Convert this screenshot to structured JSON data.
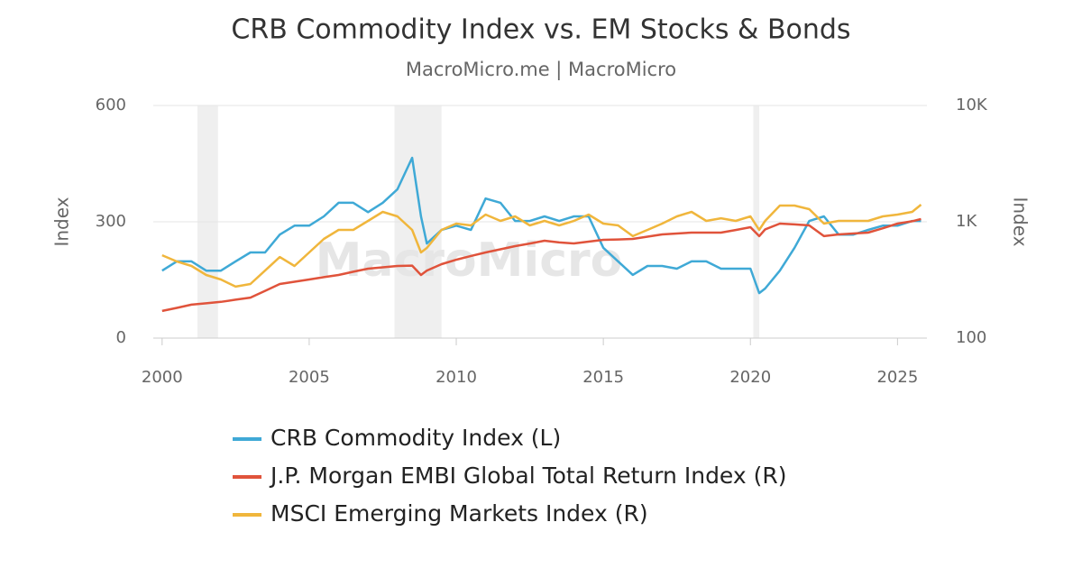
{
  "chart_data": {
    "type": "line",
    "title": "CRB Commodity Index vs. EM Stocks & Bonds",
    "subtitle": "MacroMicro.me | MacroMicro",
    "watermark": "MacroMicro",
    "y_label": "Index",
    "y2_label": "Index",
    "xlim": [
      1999.7,
      2026
    ],
    "xticks": [
      2000,
      2005,
      2010,
      2015,
      2020,
      2025
    ],
    "ylim": [
      0,
      600
    ],
    "yticks": [
      0,
      300,
      600
    ],
    "y2lim": [
      100,
      10000
    ],
    "y2log": true,
    "y2ticks": [
      100,
      {
        "value": 1000,
        "label": "1K"
      },
      {
        "value": 10000,
        "label": "10K"
      }
    ],
    "grid": true,
    "shaded_ranges": [
      [
        2001.2,
        2001.9
      ],
      [
        2007.9,
        2009.5
      ],
      [
        2020.1,
        2020.3
      ]
    ],
    "x": [
      2000,
      2000.5,
      2001,
      2001.5,
      2002,
      2002.5,
      2003,
      2003.5,
      2004,
      2004.5,
      2005,
      2005.5,
      2006,
      2006.5,
      2007,
      2007.5,
      2008,
      2008.5,
      2008.8,
      2009,
      2009.5,
      2010,
      2010.5,
      2011,
      2011.5,
      2012,
      2012.5,
      2013,
      2013.5,
      2014,
      2014.5,
      2015,
      2015.5,
      2016,
      2016.5,
      2017,
      2017.5,
      2018,
      2018.5,
      2019,
      2019.5,
      2020,
      2020.3,
      2020.5,
      2021,
      2021.5,
      2022,
      2022.5,
      2023,
      2023.5,
      2024,
      2024.5,
      2025,
      2025.5,
      2025.8
    ],
    "series": [
      {
        "name": "CRB Commodity Index (L)",
        "color": "#3fa9d6",
        "axis": "y",
        "values": [
          174,
          198,
          198,
          174,
          174,
          198,
          221,
          221,
          267,
          290,
          290,
          314,
          349,
          349,
          325,
          349,
          384,
          465,
          314,
          244,
          279,
          290,
          279,
          360,
          349,
          302,
          302,
          314,
          302,
          314,
          314,
          233,
          198,
          163,
          186,
          186,
          179,
          198,
          198,
          179,
          179,
          179,
          116,
          128,
          174,
          233,
          302,
          314,
          267,
          267,
          279,
          290,
          290,
          302,
          302
        ]
      },
      {
        "name": "J.P. Morgan EMBI Global Total Return Index (R)",
        "color": "#e0533b",
        "axis": "y2",
        "values": [
          171,
          182,
          194,
          199,
          205,
          214,
          223,
          255,
          292,
          305,
          319,
          334,
          349,
          372,
          395,
          406,
          417,
          420,
          349,
          381,
          432,
          472,
          508,
          545,
          580,
          618,
          650,
          687,
          665,
          651,
          675,
          700,
          705,
          712,
          745,
          779,
          793,
          807,
          807,
          807,
          850,
          899,
          753,
          860,
          965,
          950,
          931,
          753,
          779,
          793,
          807,
          880,
          965,
          1010,
          1056
        ]
      },
      {
        "name": "MSCI Emerging Markets Index (R)",
        "color": "#f0b63c",
        "axis": "y2",
        "values": [
          516,
          456,
          417,
          349,
          319,
          277,
          292,
          381,
          498,
          417,
          545,
          712,
          851,
          851,
          1018,
          1217,
          1113,
          851,
          545,
          596,
          851,
          965,
          931,
          1153,
          1018,
          1113,
          931,
          1018,
          931,
          1018,
          1153,
          965,
          931,
          753,
          851,
          965,
          1113,
          1217,
          1018,
          1073,
          1018,
          1113,
          851,
          1018,
          1380,
          1380,
          1284,
          965,
          1018,
          1018,
          1018,
          1113,
          1153,
          1217,
          1403
        ]
      }
    ]
  }
}
